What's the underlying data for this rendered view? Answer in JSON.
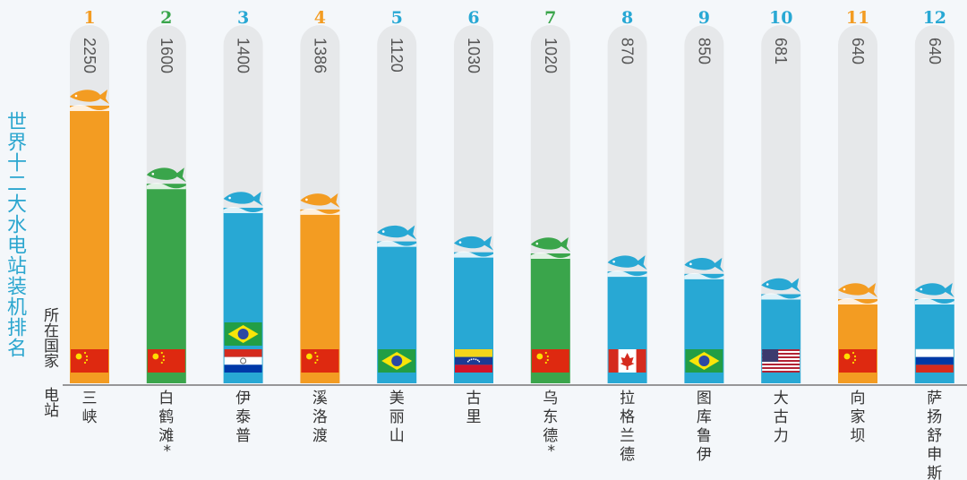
{
  "title": "世界十二大水电站装机排名",
  "country_axis_label": "所在国家",
  "station_axis_label": "电站",
  "colors": {
    "orange": "#f39c22",
    "green": "#3aa54b",
    "blue": "#28a8d4",
    "track": "#e6e8ea"
  },
  "chart_data": {
    "type": "bar",
    "categories": [
      "三峡",
      "白鹤滩",
      "伊泰普",
      "溪洛渡",
      "美丽山",
      "古里",
      "乌东德",
      "拉格兰德",
      "图库鲁伊",
      "大古力",
      "向家坝",
      "萨扬舒申斯"
    ],
    "station_marks": [
      "",
      "*",
      "",
      "",
      "",
      "",
      "*",
      "",
      "",
      "",
      "",
      ""
    ],
    "ranks": [
      "1",
      "2",
      "3",
      "4",
      "5",
      "6",
      "7",
      "8",
      "9",
      "10",
      "11",
      "12"
    ],
    "values": [
      2250,
      1600,
      1400,
      1386,
      1120,
      1030,
      1020,
      870,
      850,
      681,
      640,
      640
    ],
    "value_labels": [
      "2250",
      "1600",
      "1400",
      "1386",
      "1120",
      "1030",
      "1020",
      "870",
      "850",
      "681",
      "640",
      "640"
    ],
    "bar_colors": [
      "orange",
      "green",
      "blue",
      "orange",
      "blue",
      "blue",
      "green",
      "blue",
      "blue",
      "blue",
      "orange",
      "blue"
    ],
    "countries": [
      "china",
      "china",
      "brazil+paraguay",
      "china",
      "brazil",
      "venezuela",
      "china",
      "canada",
      "brazil",
      "usa",
      "china",
      "russia"
    ],
    "ylim": [
      0,
      2400
    ]
  }
}
